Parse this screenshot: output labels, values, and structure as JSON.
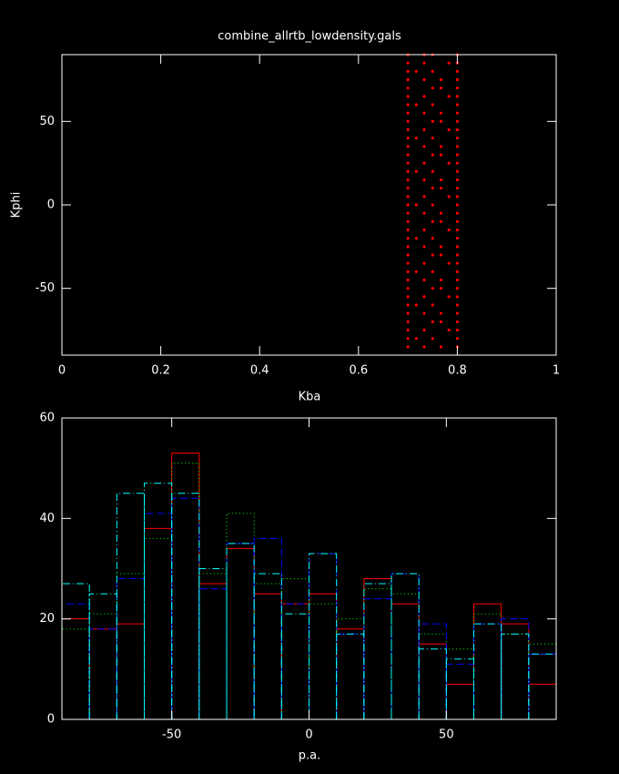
{
  "chart_data": [
    {
      "type": "scatter",
      "title": "combine_allrtb_lowdensity.gals",
      "x_label": "Kba",
      "y_label": "Kphi",
      "color": "#ff0000",
      "xlim": [
        0,
        1
      ],
      "xticks": [
        0,
        0.2,
        0.4,
        0.6,
        0.8,
        1
      ],
      "ylim": [
        -90,
        90
      ],
      "yticks": [
        -50,
        0,
        50
      ],
      "x": [
        0.7,
        0.733,
        0.767,
        0.8,
        0.7,
        0.717,
        0.75,
        0.8,
        0.7,
        0.733,
        0.783,
        0.8,
        0.7,
        0.75,
        0.767,
        0.8,
        0.7,
        0.733,
        0.767,
        0.8,
        0.7,
        0.717,
        0.75,
        0.8,
        0.7,
        0.733,
        0.783,
        0.8,
        0.7,
        0.75,
        0.767,
        0.8,
        0.7,
        0.733,
        0.767,
        0.8,
        0.7,
        0.717,
        0.75,
        0.8,
        0.7,
        0.733,
        0.783,
        0.8,
        0.7,
        0.75,
        0.767,
        0.8,
        0.7,
        0.733,
        0.767,
        0.8,
        0.7,
        0.717,
        0.75,
        0.8,
        0.7,
        0.733,
        0.783,
        0.8,
        0.7,
        0.75,
        0.767,
        0.8,
        0.7,
        0.733,
        0.767,
        0.8,
        0.7,
        0.717,
        0.75,
        0.8,
        0.7,
        0.733,
        0.783,
        0.8,
        0.7,
        0.75,
        0.767,
        0.8,
        0.7,
        0.733,
        0.767,
        0.8,
        0.7,
        0.717,
        0.75,
        0.8,
        0.7,
        0.733,
        0.783,
        0.8,
        0.7,
        0.75,
        0.767,
        0.8,
        0.7,
        0.733,
        0.767,
        0.8,
        0.7,
        0.717,
        0.75,
        0.8,
        0.7,
        0.733,
        0.783,
        0.8,
        0.7,
        0.75,
        0.767,
        0.8,
        0.7,
        0.733,
        0.767,
        0.8,
        0.7,
        0.717,
        0.75,
        0.8,
        0.7,
        0.733,
        0.783,
        0.8,
        0.7,
        0.75,
        0.767,
        0.8,
        0.7,
        0.733,
        0.767,
        0.8,
        0.7,
        0.717,
        0.75,
        0.8,
        0.7,
        0.733,
        0.783,
        0.8,
        0.7,
        0.733,
        0.75,
        0.8
      ],
      "y": [
        -85,
        -85,
        -85,
        -85,
        -80,
        -80,
        -80,
        -80,
        -75,
        -75,
        -75,
        -75,
        -70,
        -70,
        -70,
        -70,
        -65,
        -65,
        -65,
        -65,
        -60,
        -60,
        -60,
        -60,
        -55,
        -55,
        -55,
        -55,
        -50,
        -50,
        -50,
        -50,
        -45,
        -45,
        -45,
        -45,
        -40,
        -40,
        -40,
        -40,
        -35,
        -35,
        -35,
        -35,
        -30,
        -30,
        -30,
        -30,
        -25,
        -25,
        -25,
        -25,
        -20,
        -20,
        -20,
        -20,
        -15,
        -15,
        -15,
        -15,
        -10,
        -10,
        -10,
        -10,
        -5,
        -5,
        -5,
        -5,
        0,
        0,
        0,
        0,
        5,
        5,
        5,
        5,
        10,
        10,
        10,
        10,
        15,
        15,
        15,
        15,
        20,
        20,
        20,
        20,
        25,
        25,
        25,
        25,
        30,
        30,
        30,
        30,
        35,
        35,
        35,
        35,
        40,
        40,
        40,
        40,
        45,
        45,
        45,
        45,
        50,
        50,
        50,
        50,
        55,
        55,
        55,
        55,
        60,
        60,
        60,
        60,
        65,
        65,
        65,
        65,
        70,
        70,
        70,
        70,
        75,
        75,
        75,
        75,
        80,
        80,
        80,
        80,
        85,
        85,
        85,
        85,
        90,
        90,
        90,
        90
      ]
    },
    {
      "type": "histogram",
      "x_label": "p.a.",
      "xlim": [
        -90,
        90
      ],
      "xticks": [
        -50,
        0,
        50
      ],
      "ylim": [
        0,
        60
      ],
      "yticks": [
        0,
        20,
        40,
        60
      ],
      "bins": [
        -90,
        -80,
        -70,
        -60,
        -50,
        -40,
        -30,
        -20,
        -10,
        0,
        10,
        20,
        30,
        40,
        50,
        60,
        70,
        80,
        90
      ],
      "series": [
        {
          "color": "#ff0000",
          "dash": "solid",
          "values": [
            20,
            18,
            19,
            38,
            53,
            27,
            34,
            25,
            23,
            25,
            18,
            28,
            23,
            15,
            7,
            23,
            19,
            7
          ]
        },
        {
          "color": "#00ff00",
          "dash": "dotted",
          "values": [
            18,
            21,
            29,
            36,
            51,
            29,
            41,
            27,
            28,
            23,
            20,
            26,
            25,
            17,
            14,
            21,
            17,
            15
          ]
        },
        {
          "color": "#0000ff",
          "dash": "dashed",
          "values": [
            23,
            18,
            28,
            41,
            44,
            26,
            35,
            36,
            23,
            33,
            17,
            24,
            29,
            19,
            11,
            19,
            20,
            13
          ]
        },
        {
          "color": "#00ffff",
          "dash": "dashdot",
          "values": [
            27,
            25,
            45,
            47,
            45,
            30,
            35,
            29,
            21,
            33,
            17,
            27,
            29,
            14,
            12,
            19,
            17,
            13
          ]
        }
      ]
    }
  ]
}
